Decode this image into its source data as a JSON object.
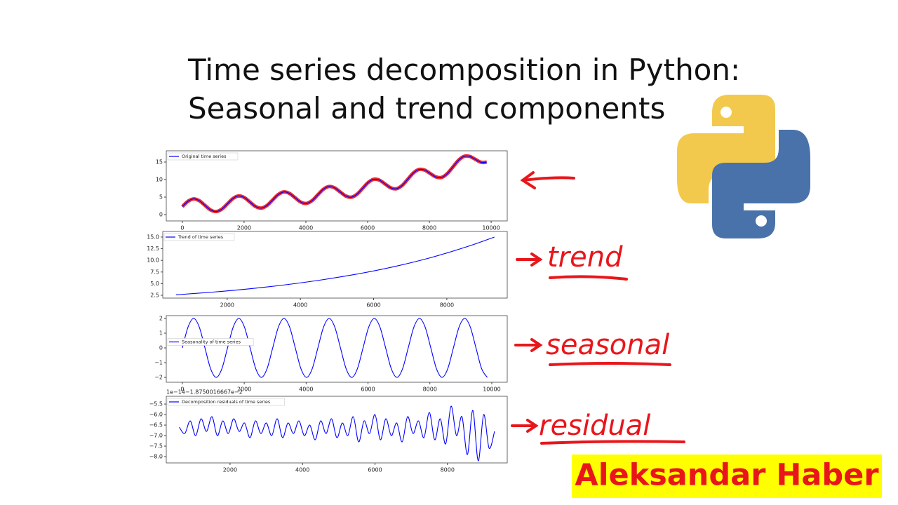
{
  "slide": {
    "title": [
      "Time series decomposition in Python:",
      "Seasonal and trend components"
    ],
    "annotations": [
      "trend",
      "seasonal",
      "residual"
    ],
    "author": "Aleksandar Haber"
  },
  "chart_data": [
    {
      "type": "line",
      "legend": "upper left",
      "highlight_color": "#e8161b",
      "x": [
        0,
        182.5,
        365,
        547.5,
        730,
        912.5,
        1095,
        1277.5,
        1460,
        1642.5,
        1825,
        2007.5,
        2190,
        2372.5,
        2555,
        2737.5,
        2920,
        3102.5,
        3285,
        3467.5,
        3650,
        3832.5,
        4015,
        4197.5,
        4380,
        4562.5,
        4745,
        4927.5,
        5110,
        5292.5,
        5475,
        5657.5,
        5840,
        6022.5,
        6205,
        6387.5,
        6570,
        6752.5,
        6935,
        7117.5,
        7300,
        7482.5,
        7665,
        7847.5,
        8030,
        8212.5,
        8395,
        8577.5,
        8760,
        8942.5,
        9125,
        9307.5,
        9490,
        9672.5,
        9855
      ],
      "series": [
        {
          "name": "Original time series",
          "color": "#0000ff",
          "values": [
            2.3,
            3.8,
            4.48,
            3.98,
            2.66,
            1.35,
            0.87,
            1.57,
            3.09,
            4.62,
            5.33,
            4.86,
            3.58,
            2.31,
            1.86,
            2.59,
            4.15,
            5.72,
            6.47,
            6.05,
            4.82,
            3.59,
            3.19,
            3.97,
            5.59,
            7.21,
            8.01,
            7.65,
            6.48,
            5.31,
            4.97,
            5.83,
            7.51,
            9.2,
            10.09,
            9.8,
            8.71,
            7.63,
            7.38,
            8.32,
            10.1,
            11.89,
            12.88,
            12.7,
            11.71,
            10.74,
            10.61,
            11.68,
            13.58,
            15.5,
            16.62,
            16.59,
            15.75,
            14.93,
            14.96
          ]
        }
      ],
      "xlim": [
        -520,
        10520
      ],
      "xticks": [
        0,
        2000,
        4000,
        6000,
        8000,
        10000
      ],
      "ylim": [
        -1.8,
        18.2
      ],
      "yticks": [
        0,
        5,
        10,
        15
      ]
    },
    {
      "type": "line",
      "legend": "upper left",
      "x": [
        600,
        1600,
        2600,
        3600,
        4600,
        5600,
        6600,
        7600,
        8600,
        9300
      ],
      "series": [
        {
          "name": "Trend of time series",
          "color": "#0000ff",
          "values": [
            2.6,
            3.18,
            3.89,
            4.76,
            5.83,
            7.13,
            8.72,
            10.67,
            13.06,
            15.0
          ]
        }
      ],
      "xlim": [
        240,
        9650
      ],
      "xticks": [
        2000,
        4000,
        6000,
        8000
      ],
      "ylim": [
        1.9,
        16.2
      ],
      "yticks": [
        {
          "value": 2.5,
          "label": "2.5"
        },
        {
          "value": 5,
          "label": "5.0"
        },
        {
          "value": 7.5,
          "label": "7.5"
        },
        {
          "value": 10,
          "label": "10.0"
        },
        {
          "value": 12.5,
          "label": "12.5"
        },
        {
          "value": 15,
          "label": "15.0"
        }
      ]
    },
    {
      "type": "line",
      "legend": "center left",
      "x": [
        0,
        182.5,
        365,
        547.5,
        730,
        912.5,
        1095,
        1277.5,
        1460,
        1642.5,
        1825,
        2007.5,
        2190,
        2372.5,
        2555,
        2737.5,
        2920,
        3102.5,
        3285,
        3467.5,
        3650,
        3832.5,
        4015,
        4197.5,
        4380,
        4562.5,
        4745,
        4927.5,
        5110,
        5292.5,
        5475,
        5657.5,
        5840,
        6022.5,
        6205,
        6387.5,
        6570,
        6752.5,
        6935,
        7117.5,
        7300,
        7482.5,
        7665,
        7847.5,
        8030,
        8212.5,
        8395,
        8577.5,
        8760,
        8942.5,
        9125,
        9307.5,
        9490,
        9672.5,
        9855
      ],
      "series": [
        {
          "name": "Seasonality of time series",
          "color": "#0000ff",
          "values": [
            0,
            1.41,
            2,
            1.41,
            0,
            -1.41,
            -2,
            -1.41,
            0,
            1.41,
            2,
            1.41,
            0,
            -1.41,
            -2,
            -1.41,
            0,
            1.41,
            2,
            1.41,
            0,
            -1.41,
            -2,
            -1.41,
            0,
            1.41,
            2,
            1.41,
            0,
            -1.41,
            -2,
            -1.41,
            0,
            1.41,
            2,
            1.41,
            0,
            -1.41,
            -2,
            -1.41,
            0,
            1.41,
            2,
            1.41,
            0,
            -1.41,
            -2,
            -1.41,
            0,
            1.41,
            2,
            1.41,
            0,
            -1.41,
            -2
          ]
        }
      ],
      "xlim": [
        -520,
        10500
      ],
      "xticks": [
        0,
        2000,
        4000,
        6000,
        8000,
        10000
      ],
      "ylim": [
        -2.33,
        2.19
      ],
      "yticks": [
        {
          "value": -2,
          "label": "−2"
        },
        {
          "value": -1,
          "label": "−1"
        },
        0,
        1,
        2
      ]
    },
    {
      "type": "line",
      "legend": "upper left",
      "offset_label": "1e−14−1.8750016667e−2",
      "x": [
        600,
        750,
        900,
        1050,
        1200,
        1350,
        1500,
        1650,
        1800,
        1950,
        2100,
        2250,
        2400,
        2550,
        2700,
        2850,
        3000,
        3150,
        3300,
        3450,
        3600,
        3750,
        3900,
        4050,
        4200,
        4350,
        4500,
        4650,
        4800,
        4950,
        5100,
        5250,
        5400,
        5550,
        5700,
        5850,
        6000,
        6150,
        6300,
        6450,
        6600,
        6750,
        6900,
        7050,
        7200,
        7350,
        7500,
        7650,
        7800,
        7950,
        8100,
        8250,
        8400,
        8550,
        8700,
        8850,
        9000,
        9150,
        9300
      ],
      "series": [
        {
          "name": "Decomposition residuals of time series",
          "color": "#0000ff",
          "values": [
            -6.6,
            -6.9,
            -6.3,
            -7.0,
            -6.2,
            -6.8,
            -6.1,
            -7.0,
            -6.3,
            -6.9,
            -6.2,
            -6.8,
            -6.4,
            -7.1,
            -6.3,
            -6.9,
            -6.4,
            -7.0,
            -6.2,
            -7.1,
            -6.4,
            -6.9,
            -6.3,
            -7.0,
            -6.5,
            -7.2,
            -6.3,
            -6.9,
            -6.2,
            -7.1,
            -6.4,
            -7.0,
            -6.1,
            -7.3,
            -6.3,
            -6.9,
            -6.0,
            -7.2,
            -6.2,
            -7.0,
            -6.4,
            -7.3,
            -6.1,
            -6.9,
            -6.3,
            -7.1,
            -5.9,
            -7.2,
            -6.2,
            -7.4,
            -5.6,
            -7.0,
            -6.1,
            -7.9,
            -5.8,
            -8.2,
            -6.0,
            -7.6,
            -6.8
          ]
        }
      ],
      "xlim": [
        240,
        9650
      ],
      "xticks": [
        2000,
        4000,
        6000,
        8000
      ],
      "ylim": [
        -8.3,
        -5.13
      ],
      "yticks": [
        {
          "value": -5.5,
          "label": "−5.5"
        },
        {
          "value": -6,
          "label": "−6.0"
        },
        {
          "value": -6.5,
          "label": "−6.5"
        },
        {
          "value": -7,
          "label": "−7.0"
        },
        {
          "value": -7.5,
          "label": "−7.5"
        },
        {
          "value": -8,
          "label": "−8.0"
        }
      ]
    }
  ]
}
